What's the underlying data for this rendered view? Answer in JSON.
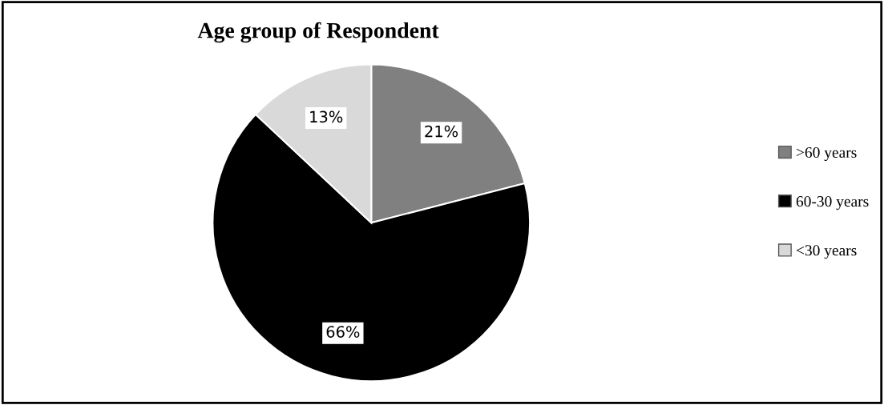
{
  "chart_data": {
    "type": "pie",
    "title": "Age group of Respondent",
    "categories": [
      ">60 years",
      "60-30 years",
      "<30 years"
    ],
    "values": [
      21,
      66,
      13
    ],
    "value_labels": [
      "21%",
      "66%",
      "13%"
    ],
    "colors": [
      "#808080",
      "#000000",
      "#d9d9d9"
    ],
    "legend": "right"
  }
}
